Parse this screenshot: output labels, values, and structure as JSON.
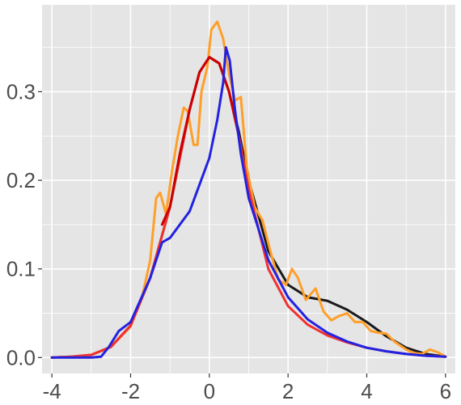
{
  "chart_data": {
    "type": "line",
    "title": "",
    "xlabel": "",
    "ylabel": "",
    "xlim": [
      -4.25,
      6.25
    ],
    "ylim": [
      -0.018,
      0.398
    ],
    "grid": true,
    "legend": "none",
    "x_ticks": [
      -4,
      -2,
      0,
      2,
      4,
      6
    ],
    "x_tick_labels": [
      "-4",
      "-2",
      "0",
      "2",
      "4",
      "6"
    ],
    "y_ticks": [
      0.0,
      0.1,
      0.2,
      0.3
    ],
    "y_tick_labels": [
      "0.0",
      "0.1",
      "0.2",
      "0.3"
    ],
    "colors": {
      "panel": "#e5e5e5",
      "grid": "#ffffff",
      "tick_text": "#4d4d4d"
    },
    "series": [
      {
        "color": "#1a1a1a",
        "points": [
          [
            -4,
            0
          ],
          [
            -3.5,
            0.001
          ],
          [
            -3,
            0.003
          ],
          [
            -2.5,
            0.012
          ],
          [
            -2,
            0.036
          ],
          [
            -1.5,
            0.09
          ],
          [
            -1,
            0.17
          ],
          [
            -0.5,
            0.28
          ],
          [
            -0.25,
            0.322
          ],
          [
            0,
            0.339
          ],
          [
            0.25,
            0.332
          ],
          [
            0.5,
            0.3
          ],
          [
            0.75,
            0.255
          ],
          [
            1,
            0.2
          ],
          [
            1.5,
            0.12
          ],
          [
            2,
            0.082
          ],
          [
            2.5,
            0.068
          ],
          [
            3,
            0.064
          ],
          [
            3.5,
            0.054
          ],
          [
            4,
            0.04
          ],
          [
            4.5,
            0.024
          ],
          [
            5,
            0.011
          ],
          [
            5.5,
            0.004
          ],
          [
            6,
            0.001
          ]
        ]
      },
      {
        "color": "#ff9f2a",
        "points": [
          [
            -4,
            0
          ],
          [
            -3.5,
            0.001
          ],
          [
            -3,
            0.003
          ],
          [
            -2.5,
            0.012
          ],
          [
            -2,
            0.035
          ],
          [
            -1.7,
            0.07
          ],
          [
            -1.5,
            0.11
          ],
          [
            -1.35,
            0.18
          ],
          [
            -1.25,
            0.186
          ],
          [
            -1.1,
            0.162
          ],
          [
            -0.95,
            0.21
          ],
          [
            -0.8,
            0.25
          ],
          [
            -0.65,
            0.282
          ],
          [
            -0.55,
            0.278
          ],
          [
            -0.4,
            0.24
          ],
          [
            -0.3,
            0.24
          ],
          [
            -0.2,
            0.3
          ],
          [
            -0.05,
            0.328
          ],
          [
            0.05,
            0.37
          ],
          [
            0.2,
            0.379
          ],
          [
            0.35,
            0.36
          ],
          [
            0.5,
            0.32
          ],
          [
            0.65,
            0.29
          ],
          [
            0.8,
            0.294
          ],
          [
            0.95,
            0.215
          ],
          [
            1.15,
            0.17
          ],
          [
            1.35,
            0.155
          ],
          [
            1.55,
            0.12
          ],
          [
            1.75,
            0.088
          ],
          [
            1.95,
            0.082
          ],
          [
            2.1,
            0.1
          ],
          [
            2.25,
            0.09
          ],
          [
            2.45,
            0.065
          ],
          [
            2.7,
            0.078
          ],
          [
            2.9,
            0.052
          ],
          [
            3.1,
            0.042
          ],
          [
            3.3,
            0.047
          ],
          [
            3.5,
            0.05
          ],
          [
            3.7,
            0.04
          ],
          [
            3.9,
            0.04
          ],
          [
            4.1,
            0.03
          ],
          [
            4.3,
            0.028
          ],
          [
            4.5,
            0.027
          ],
          [
            4.7,
            0.018
          ],
          [
            5,
            0.009
          ],
          [
            5.2,
            0.005
          ],
          [
            5.4,
            0.004
          ],
          [
            5.6,
            0.009
          ],
          [
            5.8,
            0.006
          ],
          [
            6,
            0.001
          ]
        ]
      },
      {
        "color": "#f23030",
        "points": [
          [
            -4,
            0
          ],
          [
            -3.5,
            0.001
          ],
          [
            -3,
            0.003
          ],
          [
            -2.5,
            0.012
          ],
          [
            -2,
            0.036
          ],
          [
            -1.5,
            0.09
          ],
          [
            -1,
            0.17
          ],
          [
            -0.5,
            0.28
          ],
          [
            -0.25,
            0.322
          ],
          [
            0,
            0.339
          ],
          [
            0.25,
            0.332
          ],
          [
            0.5,
            0.3
          ],
          [
            0.75,
            0.25
          ],
          [
            1,
            0.19
          ],
          [
            1.5,
            0.1
          ],
          [
            2,
            0.058
          ],
          [
            2.5,
            0.037
          ],
          [
            3,
            0.025
          ],
          [
            3.5,
            0.017
          ],
          [
            4,
            0.011
          ],
          [
            4.5,
            0.007
          ],
          [
            5,
            0.004
          ],
          [
            5.5,
            0.002
          ],
          [
            6,
            0.001
          ]
        ]
      },
      {
        "color": "#cc0000",
        "points": [
          [
            -1.2,
            0.15
          ],
          [
            -1,
            0.17
          ],
          [
            -0.75,
            0.23
          ],
          [
            -0.5,
            0.28
          ],
          [
            -0.25,
            0.322
          ],
          [
            0,
            0.339
          ],
          [
            0.25,
            0.332
          ],
          [
            0.5,
            0.3
          ],
          [
            0.75,
            0.25
          ]
        ]
      },
      {
        "color": "#2222e0",
        "points": [
          [
            -4,
            0
          ],
          [
            -3,
            0
          ],
          [
            -2.75,
            0.001
          ],
          [
            -2.55,
            0.012
          ],
          [
            -2.3,
            0.03
          ],
          [
            -2,
            0.04
          ],
          [
            -1.5,
            0.09
          ],
          [
            -1.2,
            0.13
          ],
          [
            -1,
            0.135
          ],
          [
            -0.5,
            0.165
          ],
          [
            0,
            0.225
          ],
          [
            0.2,
            0.268
          ],
          [
            0.35,
            0.31
          ],
          [
            0.42,
            0.35
          ],
          [
            0.52,
            0.335
          ],
          [
            0.65,
            0.28
          ],
          [
            0.8,
            0.23
          ],
          [
            1,
            0.18
          ],
          [
            1.5,
            0.11
          ],
          [
            2,
            0.068
          ],
          [
            2.5,
            0.043
          ],
          [
            3,
            0.028
          ],
          [
            3.5,
            0.018
          ],
          [
            4,
            0.011
          ],
          [
            4.5,
            0.007
          ],
          [
            5,
            0.004
          ],
          [
            5.5,
            0.002
          ],
          [
            6,
            0.001
          ]
        ]
      }
    ]
  }
}
